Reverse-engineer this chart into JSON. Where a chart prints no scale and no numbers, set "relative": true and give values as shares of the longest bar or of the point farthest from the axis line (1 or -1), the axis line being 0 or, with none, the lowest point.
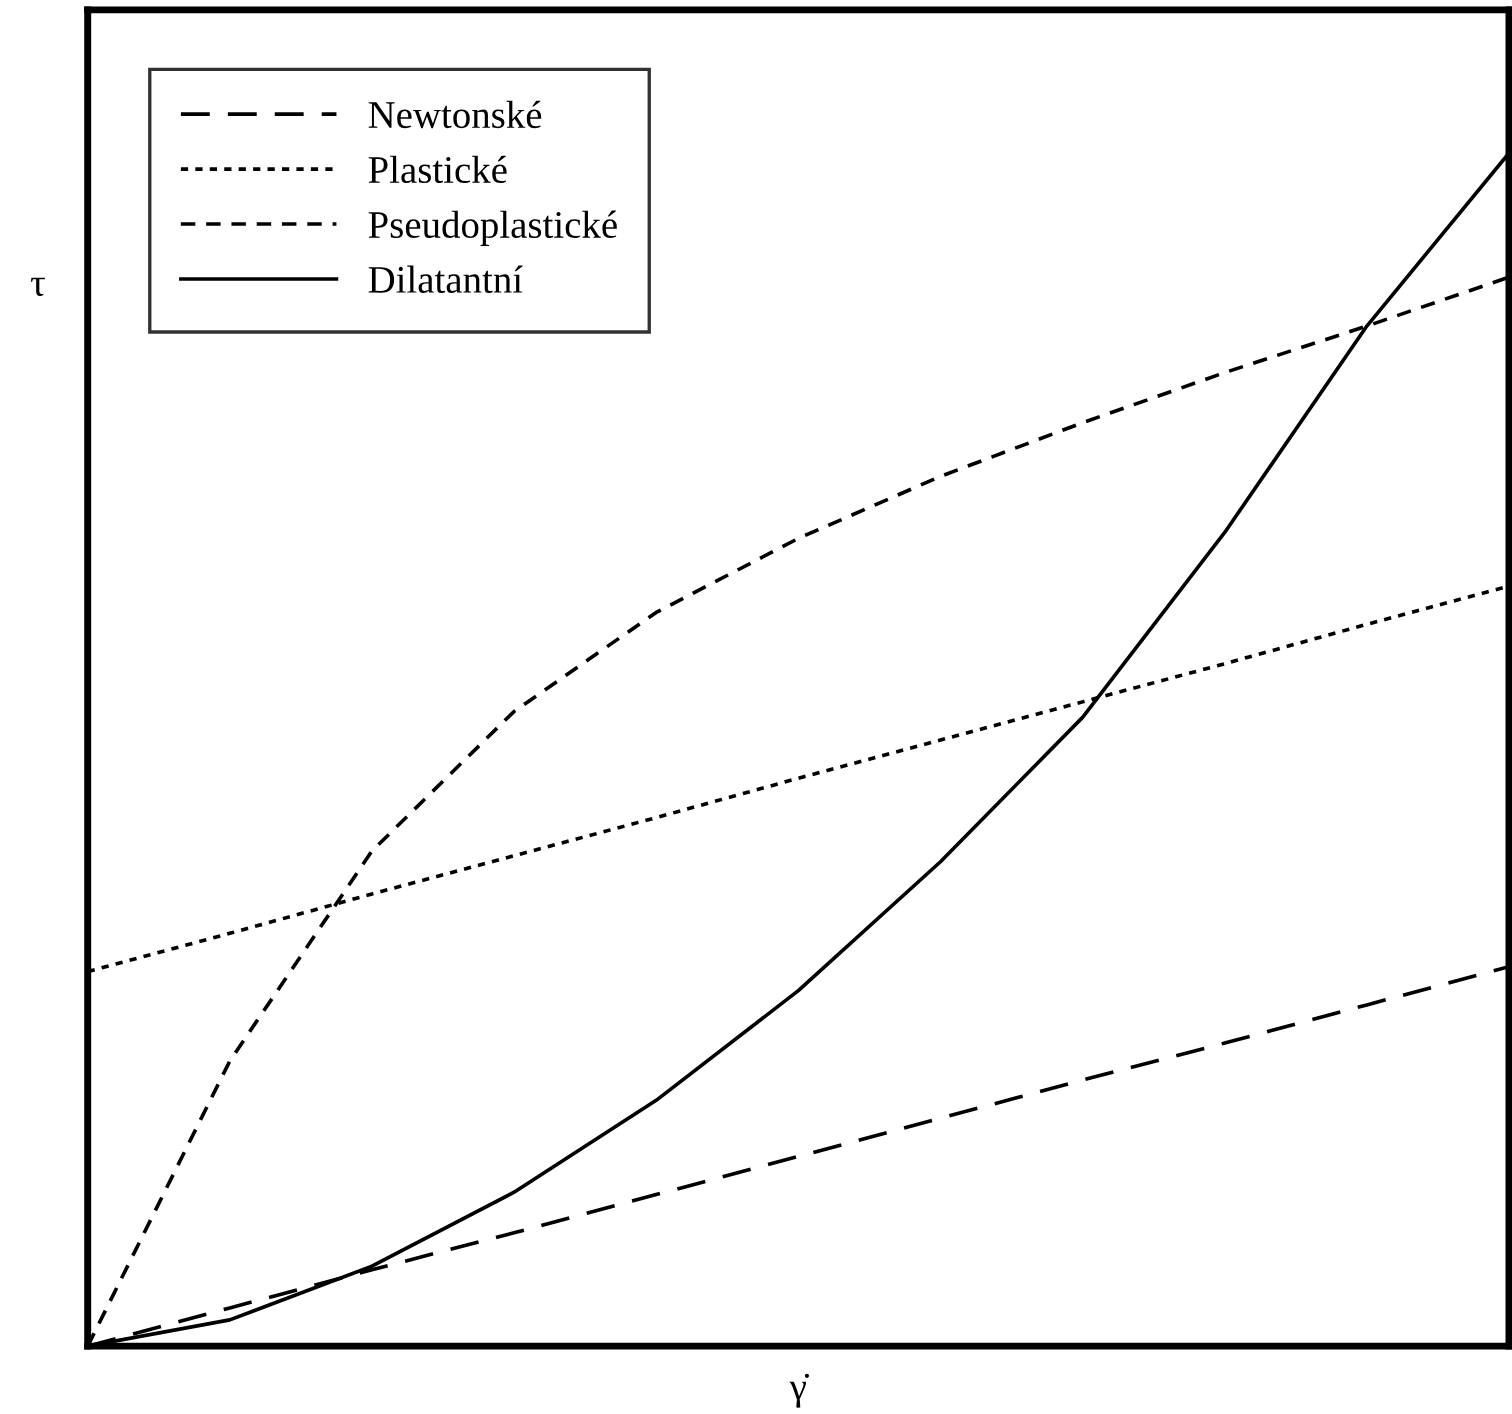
{
  "chart_data": {
    "type": "line",
    "relative": true,
    "xlabel": "γ̇",
    "ylabel": "τ",
    "categories": [
      null,
      null,
      null,
      null,
      null,
      null,
      null,
      null,
      null,
      null,
      null
    ],
    "series": [
      {
        "name": "Newtonské",
        "color": "#000000",
        "line_style": "dashed",
        "values": [
          0,
          0.032,
          0.064,
          0.095,
          0.127,
          0.159,
          0.191,
          0.223,
          0.254,
          0.286,
          0.318
        ]
      },
      {
        "name": "Plastické",
        "color": "#000000",
        "line_style": "dotted",
        "values": [
          0.314,
          0.346,
          0.379,
          0.411,
          0.443,
          0.476,
          0.508,
          0.54,
          0.572,
          0.605,
          0.637
        ]
      },
      {
        "name": "Pseudoplastické",
        "color": "#000000",
        "line_style": "dashed",
        "values": [
          0,
          0.239,
          0.415,
          0.532,
          0.615,
          0.677,
          0.729,
          0.774,
          0.816,
          0.855,
          0.896
        ]
      },
      {
        "name": "Dilatantní",
        "color": "#000000",
        "line_style": "solid",
        "values": [
          0,
          0.022,
          0.067,
          0.129,
          0.206,
          0.298,
          0.406,
          0.527,
          0.682,
          0.855,
          1.0
        ]
      }
    ],
    "legend": "top left",
    "grid": false,
    "marker": "none"
  }
}
